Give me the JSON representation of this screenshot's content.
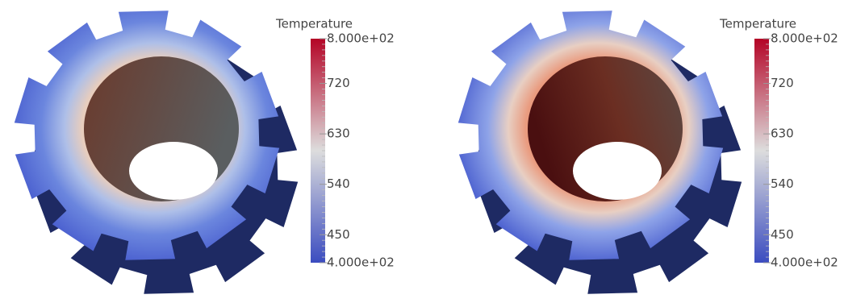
{
  "panels": [
    {
      "colorbar": {
        "title": "Temperature",
        "lim": [
          400,
          800
        ],
        "ticks": [
          {
            "value": 400,
            "label": "4.000e+02"
          },
          450,
          540,
          630,
          720,
          {
            "value": 800,
            "label": "8.000e+02"
          }
        ],
        "colors": [
          "#3b4cc0",
          "#dddddd",
          "#b40426"
        ]
      }
    },
    {
      "colorbar": {
        "title": "Temperature",
        "lim": [
          400,
          800
        ],
        "ticks": [
          {
            "value": 400,
            "label": "4.000e+02"
          },
          450,
          540,
          630,
          720,
          {
            "value": 800,
            "label": "8.000e+02"
          }
        ],
        "colors": [
          "#3b4cc0",
          "#dddddd",
          "#b40426"
        ]
      }
    }
  ]
}
